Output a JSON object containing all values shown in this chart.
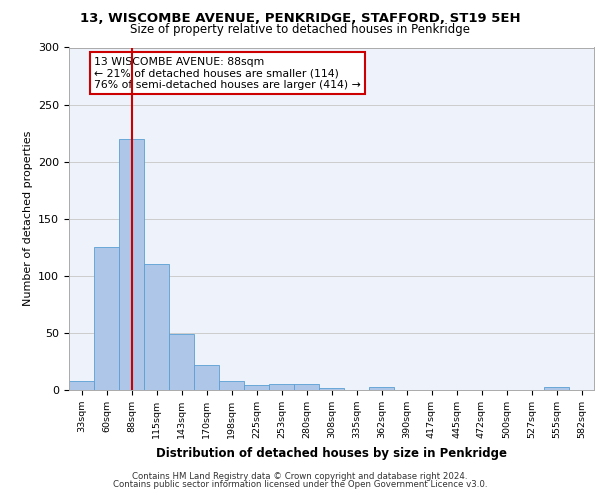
{
  "title_line1": "13, WISCOMBE AVENUE, PENKRIDGE, STAFFORD, ST19 5EH",
  "title_line2": "Size of property relative to detached houses in Penkridge",
  "xlabel": "Distribution of detached houses by size in Penkridge",
  "ylabel": "Number of detached properties",
  "bins": [
    "33sqm",
    "60sqm",
    "88sqm",
    "115sqm",
    "143sqm",
    "170sqm",
    "198sqm",
    "225sqm",
    "253sqm",
    "280sqm",
    "308sqm",
    "335sqm",
    "362sqm",
    "390sqm",
    "417sqm",
    "445sqm",
    "472sqm",
    "500sqm",
    "527sqm",
    "555sqm",
    "582sqm"
  ],
  "values": [
    8,
    125,
    220,
    110,
    49,
    22,
    8,
    4,
    5,
    5,
    2,
    0,
    3,
    0,
    0,
    0,
    0,
    0,
    0,
    3,
    0
  ],
  "bar_color": "#aec6e8",
  "bar_edge_color": "#5a9fd4",
  "highlight_bar_index": 2,
  "highlight_line_color": "#cc0000",
  "annotation_text": "13 WISCOMBE AVENUE: 88sqm\n← 21% of detached houses are smaller (114)\n76% of semi-detached houses are larger (414) →",
  "annotation_box_color": "#ffffff",
  "annotation_box_edge_color": "#cc0000",
  "ylim": [
    0,
    300
  ],
  "yticks": [
    0,
    50,
    100,
    150,
    200,
    250,
    300
  ],
  "grid_color": "#cccccc",
  "bg_color": "#eef2fb",
  "footer_line1": "Contains HM Land Registry data © Crown copyright and database right 2024.",
  "footer_line2": "Contains public sector information licensed under the Open Government Licence v3.0."
}
